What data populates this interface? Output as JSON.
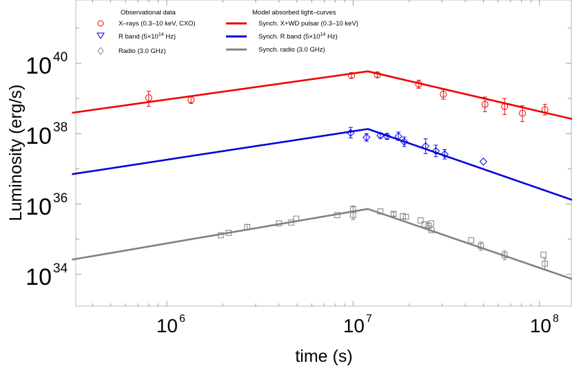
{
  "chart_data": {
    "type": "scatter",
    "title": "",
    "xlabel": "time (s)",
    "ylabel": "Luminosity (erg/s)",
    "xscale": "log",
    "yscale": "log",
    "xlim": [
      310000,
      160000000
    ],
    "ylim": [
      1e+33,
      1e+42
    ],
    "grid": false,
    "legend_position": "top-left",
    "x_ticks": [
      {
        "value": 1000000,
        "base": "10",
        "exp": "6"
      },
      {
        "value": 10000000,
        "base": "10",
        "exp": "7"
      },
      {
        "value": 100000000,
        "base": "10",
        "exp": "8"
      }
    ],
    "y_ticks": [
      {
        "value": 1e+34,
        "base": "10",
        "exp": "34"
      },
      {
        "value": 1e+36,
        "base": "10",
        "exp": "36"
      },
      {
        "value": 1e+38,
        "base": "10",
        "exp": "38"
      },
      {
        "value": 1e+40,
        "base": "10",
        "exp": "40"
      }
    ],
    "legend": {
      "obs_title": "Observational data",
      "model_title": "Model absorbed light–curves",
      "obs_xray": "X–rays (0.3–10 keV, CXO)",
      "obs_r_prefix": "R band (5×10",
      "obs_r_exp": "14",
      "obs_r_suffix": " Hz)",
      "obs_radio": "Radio (3.0 GHz)",
      "mod_xray": "Synch. X+WD pulsar (0.3–10 keV)",
      "mod_r_prefix": "Synch. R band (5×10",
      "mod_r_exp": "14",
      "mod_r_suffix": " Hz)",
      "mod_radio": "Synch. radio (3.0 GHz)"
    },
    "models": [
      {
        "key": "xray",
        "color": "#ee0000",
        "points": [
          [
            310000,
            3.9e+38
          ],
          [
            12000000.0,
            5.9e+39
          ],
          [
            160000000.0,
            2.4e+38
          ]
        ]
      },
      {
        "key": "rband",
        "color": "#0000dd",
        "points": [
          [
            310000,
            7e+36
          ],
          [
            12000000.0,
            1.35e+38
          ],
          [
            160000000.0,
            1.15e+36
          ]
        ]
      },
      {
        "key": "radio",
        "color": "#808080",
        "points": [
          [
            310000,
            2.6e+34
          ],
          [
            12000000.0,
            7.2e+35
          ],
          [
            160000000.0,
            6.5e+33
          ]
        ]
      }
    ],
    "series": [
      {
        "name": "xray",
        "marker": "circle",
        "color": "#ee0000",
        "points": [
          {
            "x": 800000,
            "y": 1.05e+39,
            "err": [
              1.6e+39,
              6e+38
            ]
          },
          {
            "x": 1350000,
            "y": 9.2e+38,
            "err": [
              1.18e+39,
              7.2e+38
            ]
          },
          {
            "x": 9800000,
            "y": 4.5e+39,
            "err": [
              5.4e+39,
              3.8e+39
            ]
          },
          {
            "x": 13500000,
            "y": 4.7e+39,
            "err": [
              5.6e+39,
              4e+39
            ]
          },
          {
            "x": 22500000,
            "y": 2.55e+39,
            "err": [
              3.3e+39,
              1.95e+39
            ]
          },
          {
            "x": 30500000,
            "y": 1.32e+39,
            "err": [
              1.8e+39,
              9.5e+38
            ]
          },
          {
            "x": 51000000,
            "y": 6.8e+38,
            "err": [
              1.1e+39,
              4.2e+38
            ]
          },
          {
            "x": 65000000,
            "y": 5.9e+38,
            "err": [
              1e+39,
              3.5e+38
            ]
          },
          {
            "x": 81000000,
            "y": 3.8e+38,
            "err": [
              6.2e+38,
              2.2e+38
            ]
          },
          {
            "x": 107000000,
            "y": 4.8e+38,
            "err": [
              6.8e+38,
              3.4e+38
            ]
          }
        ]
      },
      {
        "name": "rband",
        "marker": "diamond",
        "color": "#0000dd",
        "points": [
          {
            "x": 9700000,
            "y": 1.05e+38,
            "err": [
              1.5e+38,
              7.5e+37
            ]
          },
          {
            "x": 11800000,
            "y": 7.8e+37,
            "err": [
              1e+38,
              6.1e+37
            ]
          },
          {
            "x": 14000000,
            "y": 8.8e+37,
            "err": [
              1.05e+38,
              7.4e+37
            ]
          },
          {
            "x": 15200000,
            "y": 8.3e+37,
            "err": [
              1e+38,
              6.9e+37
            ]
          },
          {
            "x": 17500000,
            "y": 8.4e+37,
            "err": [
              1.1e+38,
              6.4e+37
            ]
          },
          {
            "x": 18800000,
            "y": 5.9e+37,
            "err": [
              8e+37,
              4.3e+37
            ]
          },
          {
            "x": 24500000,
            "y": 4.4e+37,
            "err": [
              7.1e+37,
              2.7e+37
            ]
          },
          {
            "x": 27800000,
            "y": 3.2e+37,
            "err": [
              4.7e+37,
              2.2e+37
            ]
          },
          {
            "x": 31000000,
            "y": 2.6e+37,
            "err": [
              3.5e+37,
              1.9e+37
            ]
          },
          {
            "x": 50000000,
            "y": 1.6e+37,
            "err": null
          }
        ]
      },
      {
        "name": "radio",
        "marker": "square",
        "color": "#808080",
        "points": [
          {
            "x": 1950000,
            "y": 1.28e+35,
            "err": null
          },
          {
            "x": 2150000,
            "y": 1.5e+35,
            "err": null
          },
          {
            "x": 2700000,
            "y": 2.2e+35,
            "err": [
              2.6e+35,
              1.85e+35
            ]
          },
          {
            "x": 4000000,
            "y": 2.8e+35,
            "err": null
          },
          {
            "x": 4650000,
            "y": 2.95e+35,
            "err": null
          },
          {
            "x": 4950000,
            "y": 3.8e+35,
            "err": null
          },
          {
            "x": 8200000,
            "y": 4.8e+35,
            "err": null
          },
          {
            "x": 10000000,
            "y": 7e+35,
            "err": [
              8.8e+35,
              5.8e+35
            ]
          },
          {
            "x": 10000000,
            "y": 4.8e+35,
            "err": [
              6.3e+35,
              3.6e+35
            ]
          },
          {
            "x": 14000000,
            "y": 6.1e+35,
            "err": null
          },
          {
            "x": 16500000,
            "y": 5.2e+35,
            "err": [
              5.9e+35,
              4.5e+35
            ]
          },
          {
            "x": 18500000,
            "y": 4.5e+35,
            "err": null
          },
          {
            "x": 19200000,
            "y": 4.3e+35,
            "err": null
          },
          {
            "x": 23000000,
            "y": 3.4e+35,
            "err": null
          },
          {
            "x": 24200000,
            "y": 2.6e+35,
            "err": null
          },
          {
            "x": 25400000,
            "y": 2.4e+35,
            "err": [
              2.9e+35,
              2e+35
            ]
          },
          {
            "x": 26200000,
            "y": 2.8e+35,
            "err": null
          },
          {
            "x": 26400000,
            "y": 1.8e+35,
            "err": null
          },
          {
            "x": 43000000,
            "y": 9.2e+34,
            "err": null
          },
          {
            "x": 48500000,
            "y": 6.4e+34,
            "err": [
              8.2e+34,
              4.8e+34
            ]
          },
          {
            "x": 65000000,
            "y": 3.5e+34,
            "err": [
              4.6e+34,
              2.6e+34
            ]
          },
          {
            "x": 105000000,
            "y": 3.6e+34,
            "err": null
          },
          {
            "x": 107000000,
            "y": 2e+34,
            "err": [
              2.8e+34,
              1.35e+34
            ]
          }
        ]
      }
    ]
  }
}
